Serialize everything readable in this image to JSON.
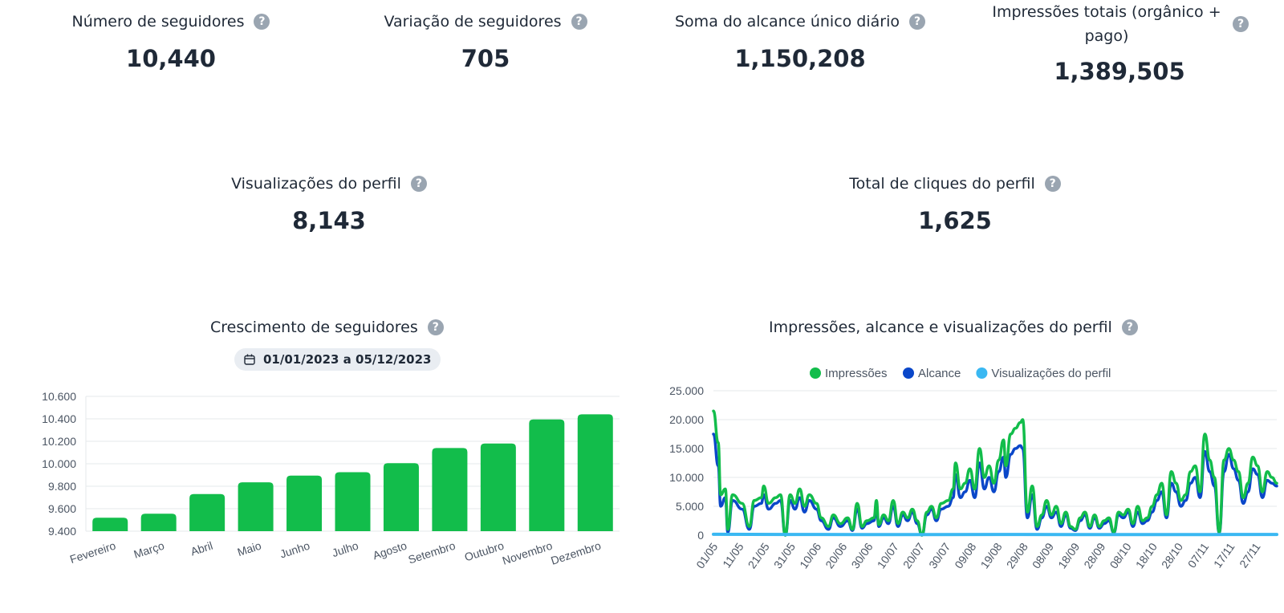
{
  "kpis": [
    {
      "title": "Número de seguidores",
      "value": "10,440"
    },
    {
      "title": "Variação de seguidores",
      "value": "705"
    },
    {
      "title": "Soma do alcance único diário",
      "value": "1,150,208"
    },
    {
      "title": "Impressões totais (orgânico + pago)",
      "value": "1,389,505"
    },
    {
      "title": "Visualizações do perfil",
      "value": "8,143"
    },
    {
      "title": "Total de cliques do perfil",
      "value": "1,625"
    }
  ],
  "help_glyph": "?",
  "bar_chart": {
    "title": "Crescimento de seguidores",
    "date_range": "01/01/2023 a 05/12/2023"
  },
  "line_chart": {
    "title": "Impressões, alcance e visualizações do perfil"
  },
  "chart_data": [
    {
      "type": "bar",
      "title": "Crescimento de seguidores",
      "categories": [
        "Fevereiro",
        "Março",
        "Abril",
        "Maio",
        "Junho",
        "Julho",
        "Agosto",
        "Setembro",
        "Outubro",
        "Novembro",
        "Dezembro"
      ],
      "values": [
        9520,
        9555,
        9730,
        9835,
        9895,
        9925,
        10005,
        10140,
        10180,
        10395,
        10440
      ],
      "ylim": [
        9400,
        10600
      ],
      "yticks": [
        "9.400",
        "9.600",
        "9.800",
        "10.000",
        "10.200",
        "10.400",
        "10.600"
      ],
      "color": "#12bd4b",
      "grid": true
    },
    {
      "type": "line",
      "title": "Impressões, alcance e visualizações do perfil",
      "legend_position": "top-center",
      "ylim": [
        0,
        25000
      ],
      "yticks": [
        "0",
        "5.000",
        "10.000",
        "15.000",
        "20.000",
        "25.000"
      ],
      "xticks": [
        "01/05",
        "11/05",
        "21/05",
        "31/05",
        "10/06",
        "20/06",
        "30/06",
        "10/07",
        "20/07",
        "30/07",
        "09/08",
        "19/08",
        "29/08",
        "08/09",
        "18/09",
        "28/09",
        "08/10",
        "18/10",
        "28/10",
        "07/11",
        "17/11",
        "27/11"
      ],
      "x_start": "01/05",
      "x_end": "05/12",
      "grid": true,
      "series": [
        {
          "name": "Impressões",
          "color": "#12bd4b",
          "anchors": [
            [
              0,
              21500
            ],
            [
              2,
              16000
            ],
            [
              3,
              7000
            ],
            [
              5,
              8000
            ],
            [
              6,
              1000
            ],
            [
              8,
              7000
            ],
            [
              12,
              5500
            ],
            [
              15,
              1500
            ],
            [
              17,
              6000
            ],
            [
              20,
              6500
            ],
            [
              21,
              8500
            ],
            [
              23,
              5500
            ],
            [
              26,
              6500
            ],
            [
              28,
              7000
            ],
            [
              30,
              0
            ],
            [
              32,
              7000
            ],
            [
              34,
              5500
            ],
            [
              36,
              8000
            ],
            [
              38,
              5000
            ],
            [
              40,
              7000
            ],
            [
              43,
              5500
            ],
            [
              45,
              3000
            ],
            [
              48,
              1500
            ],
            [
              50,
              3500
            ],
            [
              53,
              2000
            ],
            [
              56,
              3000
            ],
            [
              58,
              1000
            ],
            [
              60,
              5500
            ],
            [
              62,
              1500
            ],
            [
              64,
              2500
            ],
            [
              67,
              3000
            ],
            [
              68,
              6000
            ],
            [
              69,
              1800
            ],
            [
              71,
              3500
            ],
            [
              73,
              2500
            ],
            [
              75,
              6000
            ],
            [
              77,
              2000
            ],
            [
              79,
              4000
            ],
            [
              81,
              3000
            ],
            [
              83,
              4500
            ],
            [
              85,
              2500
            ],
            [
              87,
              0
            ],
            [
              89,
              4000
            ],
            [
              91,
              5000
            ],
            [
              93,
              3000
            ],
            [
              95,
              5500
            ],
            [
              98,
              6000
            ],
            [
              100,
              8000
            ],
            [
              101,
              12500
            ],
            [
              103,
              8000
            ],
            [
              105,
              9000
            ],
            [
              107,
              11500
            ],
            [
              109,
              8000
            ],
            [
              111,
              15000
            ],
            [
              113,
              10000
            ],
            [
              115,
              12000
            ],
            [
              117,
              9000
            ],
            [
              119,
              13000
            ],
            [
              121,
              16500
            ],
            [
              122,
              12000
            ],
            [
              124,
              17500
            ],
            [
              126,
              18500
            ],
            [
              128,
              19500
            ],
            [
              129,
              20000
            ],
            [
              131,
              4000
            ],
            [
              133,
              8500
            ],
            [
              135,
              1500
            ],
            [
              137,
              3500
            ],
            [
              139,
              6000
            ],
            [
              141,
              3500
            ],
            [
              143,
              5000
            ],
            [
              145,
              2000
            ],
            [
              147,
              4000
            ],
            [
              149,
              1500
            ],
            [
              151,
              1000
            ],
            [
              153,
              3000
            ],
            [
              155,
              4000
            ],
            [
              157,
              1500
            ],
            [
              159,
              3500
            ],
            [
              161,
              1500
            ],
            [
              163,
              2500
            ],
            [
              165,
              3000
            ],
            [
              167,
              500
            ],
            [
              169,
              4000
            ],
            [
              171,
              3500
            ],
            [
              173,
              4500
            ],
            [
              175,
              2000
            ],
            [
              177,
              5000
            ],
            [
              179,
              2500
            ],
            [
              181,
              3000
            ],
            [
              183,
              5000
            ],
            [
              185,
              7000
            ],
            [
              187,
              9000
            ],
            [
              189,
              3500
            ],
            [
              191,
              11000
            ],
            [
              193,
              9000
            ],
            [
              195,
              6000
            ],
            [
              197,
              7000
            ],
            [
              199,
              11000
            ],
            [
              201,
              12000
            ],
            [
              203,
              7500
            ],
            [
              205,
              17500
            ],
            [
              207,
              13000
            ],
            [
              209,
              10000
            ],
            [
              211,
              500
            ],
            [
              213,
              13000
            ],
            [
              215,
              15000
            ],
            [
              217,
              13000
            ],
            [
              219,
              11000
            ],
            [
              221,
              6500
            ],
            [
              223,
              9000
            ],
            [
              225,
              13500
            ],
            [
              227,
              12000
            ],
            [
              229,
              7500
            ],
            [
              231,
              11000
            ],
            [
              233,
              10000
            ],
            [
              235,
              9000
            ]
          ]
        },
        {
          "name": "Alcance",
          "color": "#0a47c9",
          "anchors": [
            [
              0,
              17500
            ],
            [
              2,
              12000
            ],
            [
              3,
              5000
            ],
            [
              5,
              6500
            ],
            [
              6,
              500
            ],
            [
              8,
              6000
            ],
            [
              12,
              4500
            ],
            [
              15,
              1000
            ],
            [
              17,
              5000
            ],
            [
              20,
              5500
            ],
            [
              21,
              7000
            ],
            [
              23,
              4500
            ],
            [
              26,
              5500
            ],
            [
              28,
              6000
            ],
            [
              30,
              0
            ],
            [
              32,
              6000
            ],
            [
              34,
              4500
            ],
            [
              36,
              6500
            ],
            [
              38,
              4000
            ],
            [
              40,
              6000
            ],
            [
              43,
              4500
            ],
            [
              45,
              2500
            ],
            [
              48,
              1000
            ],
            [
              50,
              3000
            ],
            [
              53,
              1500
            ],
            [
              56,
              2500
            ],
            [
              58,
              800
            ],
            [
              60,
              4500
            ],
            [
              62,
              1200
            ],
            [
              64,
              2000
            ],
            [
              67,
              2500
            ],
            [
              68,
              5000
            ],
            [
              69,
              1500
            ],
            [
              71,
              3000
            ],
            [
              73,
              2000
            ],
            [
              75,
              5000
            ],
            [
              77,
              1500
            ],
            [
              79,
              3500
            ],
            [
              81,
              2500
            ],
            [
              83,
              4000
            ],
            [
              85,
              2000
            ],
            [
              87,
              0
            ],
            [
              89,
              3500
            ],
            [
              91,
              4500
            ],
            [
              93,
              2500
            ],
            [
              95,
              4500
            ],
            [
              98,
              5000
            ],
            [
              100,
              6500
            ],
            [
              101,
              10500
            ],
            [
              103,
              6500
            ],
            [
              105,
              7500
            ],
            [
              107,
              9500
            ],
            [
              109,
              6500
            ],
            [
              111,
              12500
            ],
            [
              113,
              8000
            ],
            [
              115,
              10000
            ],
            [
              117,
              7500
            ],
            [
              119,
              11000
            ],
            [
              121,
              13500
            ],
            [
              122,
              10000
            ],
            [
              124,
              14000
            ],
            [
              126,
              15000
            ],
            [
              128,
              15500
            ],
            [
              129,
              15000
            ],
            [
              131,
              3000
            ],
            [
              133,
              7000
            ],
            [
              135,
              1000
            ],
            [
              137,
              3000
            ],
            [
              139,
              5000
            ],
            [
              141,
              3000
            ],
            [
              143,
              4000
            ],
            [
              145,
              1500
            ],
            [
              147,
              3500
            ],
            [
              149,
              1200
            ],
            [
              151,
              800
            ],
            [
              153,
              2500
            ],
            [
              155,
              3500
            ],
            [
              157,
              1200
            ],
            [
              159,
              3000
            ],
            [
              161,
              1200
            ],
            [
              163,
              2000
            ],
            [
              165,
              2500
            ],
            [
              167,
              400
            ],
            [
              169,
              3500
            ],
            [
              171,
              3000
            ],
            [
              173,
              4000
            ],
            [
              175,
              1500
            ],
            [
              177,
              4000
            ],
            [
              179,
              2000
            ],
            [
              181,
              2500
            ],
            [
              183,
              4000
            ],
            [
              185,
              6000
            ],
            [
              187,
              7500
            ],
            [
              189,
              3000
            ],
            [
              191,
              9000
            ],
            [
              193,
              7500
            ],
            [
              195,
              5000
            ],
            [
              197,
              6000
            ],
            [
              199,
              9000
            ],
            [
              201,
              10000
            ],
            [
              203,
              6500
            ],
            [
              205,
              14500
            ],
            [
              207,
              11000
            ],
            [
              209,
              8500
            ],
            [
              211,
              400
            ],
            [
              213,
              11000
            ],
            [
              215,
              14000
            ],
            [
              217,
              11500
            ],
            [
              219,
              9500
            ],
            [
              221,
              5500
            ],
            [
              223,
              7500
            ],
            [
              225,
              11500
            ],
            [
              227,
              10500
            ],
            [
              229,
              6500
            ],
            [
              231,
              9500
            ],
            [
              233,
              9000
            ],
            [
              235,
              8500
            ]
          ]
        },
        {
          "name": "Visualizações do perfil",
          "color": "#3ab8f2",
          "anchors": [
            [
              0,
              150
            ],
            [
              60,
              100
            ],
            [
              120,
              120
            ],
            [
              180,
              100
            ],
            [
              235,
              130
            ]
          ]
        }
      ]
    }
  ]
}
